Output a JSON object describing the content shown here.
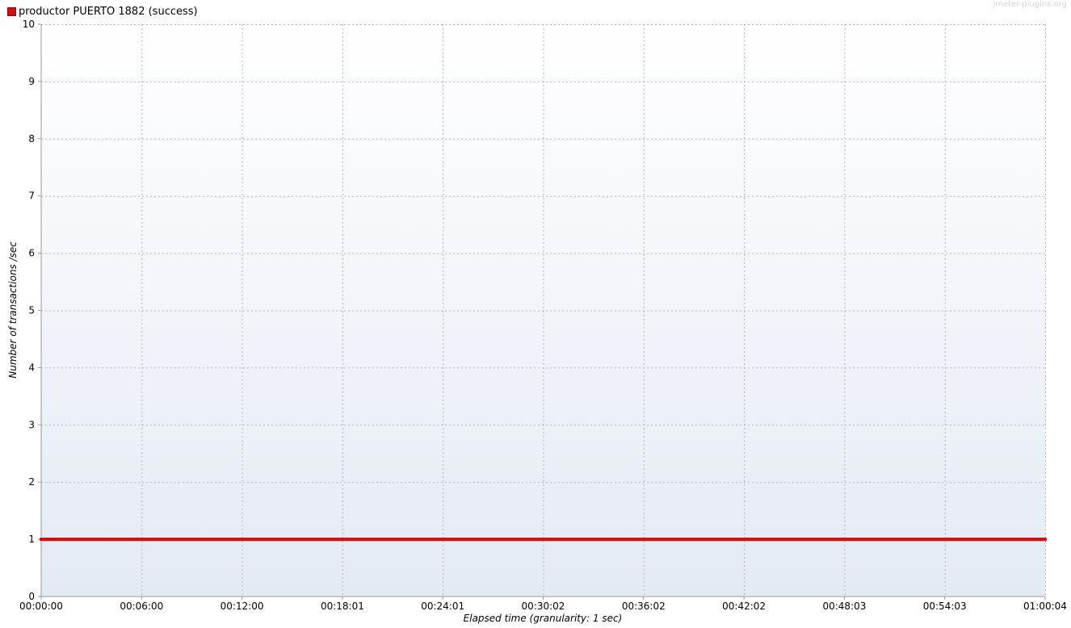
{
  "watermark": "jmeter-plugins.org",
  "colors": {
    "series": "#e60000",
    "grid": "#b4b4b4",
    "axis": "#999999",
    "plot_bg_top": "#ffffff",
    "plot_bg_bottom": "#e4eaf4"
  },
  "chart_data": {
    "type": "line",
    "xlabel": "Elapsed time (granularity: 1 sec)",
    "ylabel": "Number of transactions /sec",
    "ylim": [
      0,
      10
    ],
    "yticks": [
      "0",
      "1",
      "2",
      "3",
      "4",
      "5",
      "6",
      "7",
      "8",
      "9",
      "10"
    ],
    "xticks": [
      "00:00:00",
      "00:06:00",
      "00:12:00",
      "00:18:01",
      "00:24:01",
      "00:30:02",
      "00:36:02",
      "00:42:02",
      "00:48:03",
      "00:54:03",
      "01:00:04"
    ],
    "grid": true,
    "legend_position": "top-left",
    "series": [
      {
        "name": "productor PUERTO 1882 (success)",
        "x": [
          "00:00:00",
          "01:00:04"
        ],
        "values": [
          1,
          1
        ]
      }
    ]
  }
}
